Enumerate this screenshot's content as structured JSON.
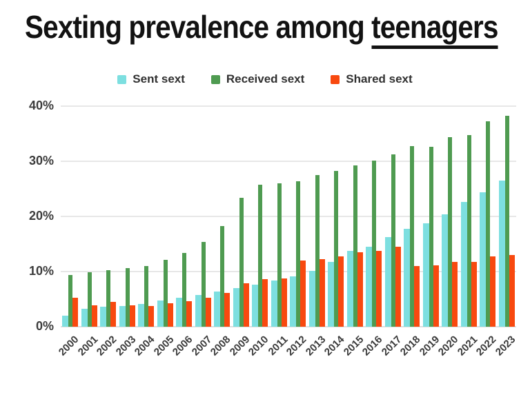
{
  "title": {
    "main": "Sexting prevalence among ",
    "underlined": "teenagers"
  },
  "colors": {
    "sent": "#7DDFE0",
    "received": "#4F9B51",
    "shared": "#F8490F",
    "grid": "#E7E7E7",
    "axis_text": "#3B3B3B",
    "title_text": "#121212",
    "background": "#FFFFFF"
  },
  "chart_data": {
    "type": "bar",
    "title": "Sexting prevalence among teenagers",
    "xlabel": "",
    "ylabel": "",
    "ylim": [
      0,
      40
    ],
    "y_ticks": [
      0,
      10,
      20,
      30,
      40
    ],
    "y_tick_labels": [
      "0%",
      "10%",
      "20%",
      "30%",
      "40%"
    ],
    "grid": true,
    "legend_position": "top",
    "categories": [
      "2000",
      "2001",
      "2002",
      "2003",
      "2004",
      "2005",
      "2006",
      "2007",
      "2008",
      "2009",
      "2010",
      "2011",
      "2012",
      "2013",
      "2014",
      "2015",
      "2016",
      "2017",
      "2018",
      "2019",
      "2020",
      "2021",
      "2022",
      "2023"
    ],
    "series": [
      {
        "name": "Sent sext",
        "color_key": "sent",
        "values": [
          2.0,
          3.3,
          3.6,
          3.8,
          4.1,
          4.8,
          5.2,
          5.8,
          6.4,
          7.0,
          7.6,
          8.4,
          9.1,
          10.1,
          11.8,
          13.7,
          14.5,
          16.3,
          17.8,
          18.8,
          20.4,
          22.6,
          24.4,
          26.5
        ]
      },
      {
        "name": "Received sext",
        "color_key": "received",
        "values": [
          9.4,
          9.9,
          10.2,
          10.6,
          11.0,
          12.1,
          13.4,
          15.4,
          18.2,
          23.4,
          25.8,
          26.0,
          26.4,
          27.5,
          28.2,
          29.2,
          30.1,
          31.3,
          32.8,
          32.6,
          34.4,
          34.7,
          37.3,
          38.2
        ]
      },
      {
        "name": "Shared sext",
        "color_key": "shared",
        "values": [
          5.2,
          3.9,
          4.5,
          3.9,
          3.8,
          4.2,
          4.6,
          5.2,
          6.1,
          7.9,
          8.6,
          8.8,
          12.0,
          12.3,
          12.8,
          13.5,
          13.8,
          14.5,
          11.0,
          11.1,
          11.7,
          11.8,
          12.7,
          13.0
        ]
      }
    ]
  }
}
